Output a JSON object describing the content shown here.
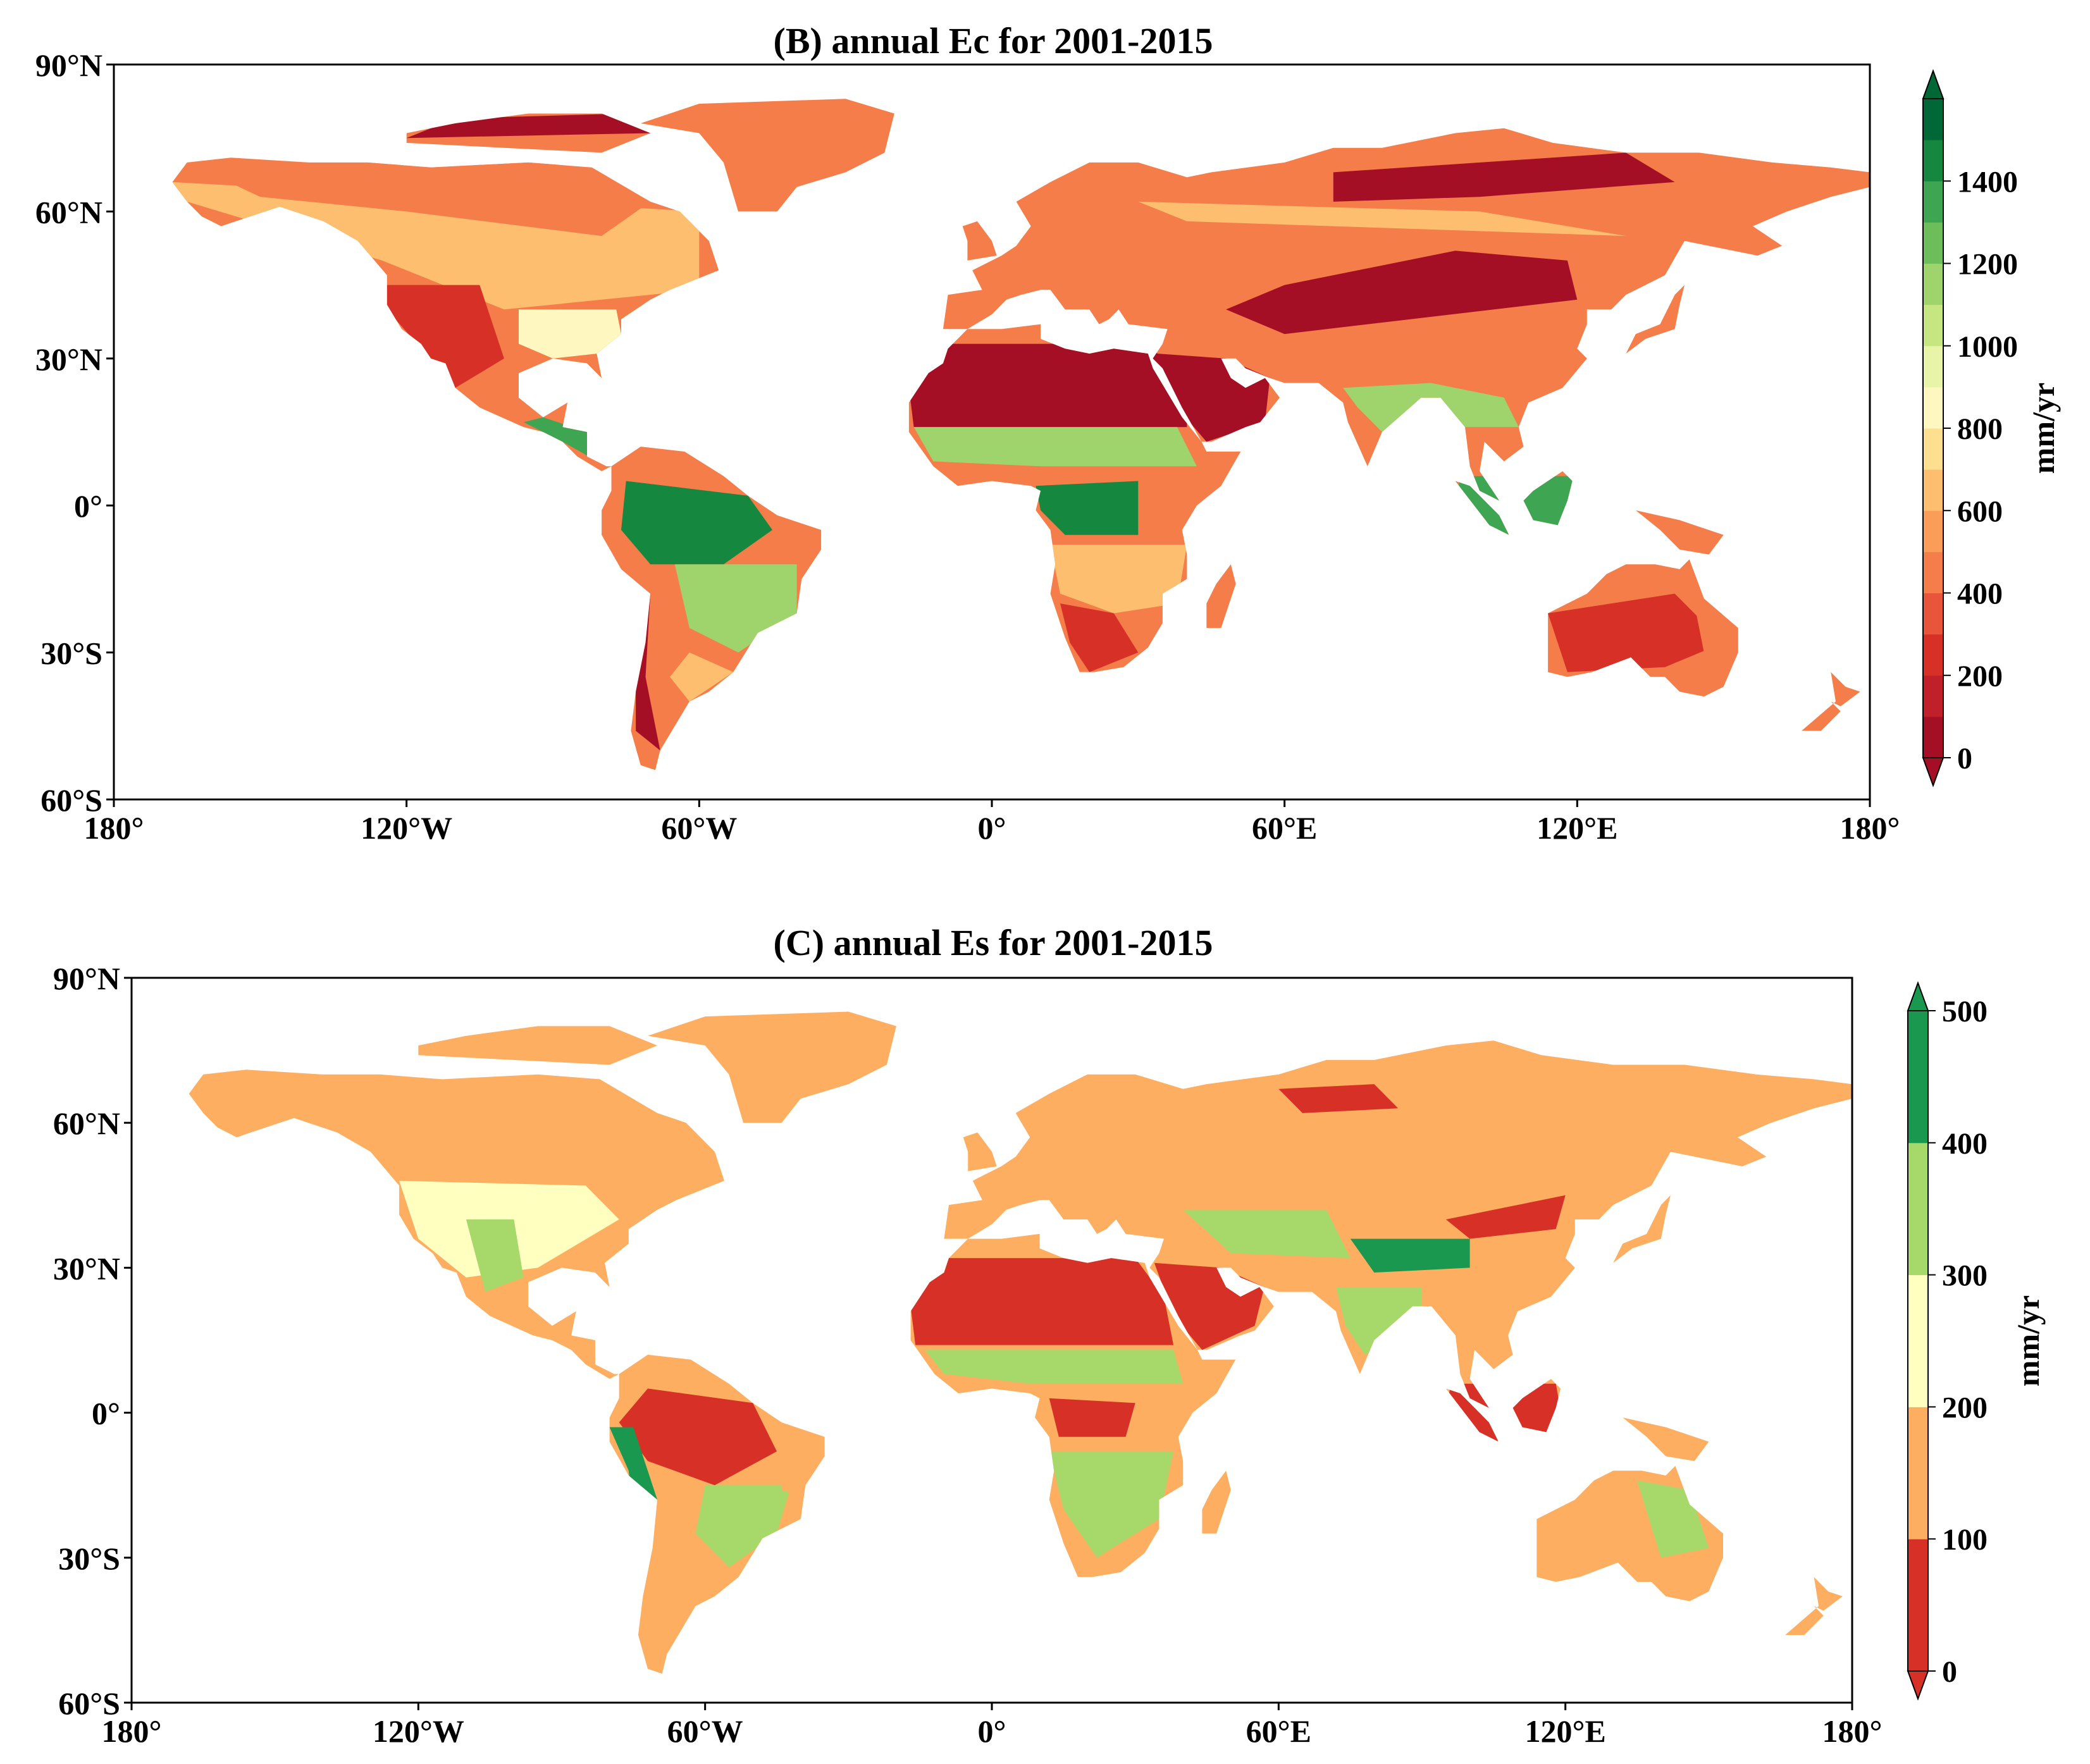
{
  "panels": [
    {
      "id": "B",
      "title": "(B) annual Ec for 2001-2015",
      "lat_labels": [
        "90°N",
        "60°N",
        "30°N",
        "0°",
        "30°S",
        "60°S"
      ],
      "lon_labels": [
        "180°",
        "120°W",
        "60°W",
        "0°",
        "60°E",
        "120°E",
        "180°"
      ],
      "colorbar": {
        "unit": "mm/yr",
        "ticks": [
          "0",
          "200",
          "400",
          "600",
          "800",
          "1000",
          "1200",
          "1400"
        ],
        "colors": [
          "#a50f26",
          "#c0202a",
          "#d73027",
          "#e8553a",
          "#f47d4a",
          "#f99d59",
          "#fdbf6f",
          "#fedf90",
          "#fef8c0",
          "#e8f5a8",
          "#c6e681",
          "#9fd46d",
          "#6ebd5b",
          "#3ea552",
          "#16873f",
          "#006837"
        ]
      }
    },
    {
      "id": "C",
      "title": "(C) annual Es for 2001-2015",
      "lat_labels": [
        "90°N",
        "60°N",
        "30°N",
        "0°",
        "30°S",
        "60°S"
      ],
      "lon_labels": [
        "180°",
        "120°W",
        "60°W",
        "0°",
        "60°E",
        "120°E",
        "180°"
      ],
      "colorbar": {
        "unit": "mm/yr",
        "ticks": [
          "0",
          "100",
          "200",
          "300",
          "400",
          "500"
        ],
        "colors": [
          "#d73027",
          "#fdae61",
          "#ffffbf",
          "#a6d96a",
          "#1a9850"
        ]
      }
    }
  ],
  "map_palette": {
    "B": {
      "dry": "#a50f26",
      "low": "#d73027",
      "mid": "#f47d4a",
      "light": "#fdbf6f",
      "pale": "#fef8c0",
      "green": "#9fd46d",
      "wet": "#3ea552",
      "wettest": "#16873f"
    },
    "C": {
      "red": "#d73027",
      "orange": "#fdae61",
      "yellow": "#ffffbf",
      "lgreen": "#a6d96a",
      "green": "#1a9850"
    }
  }
}
